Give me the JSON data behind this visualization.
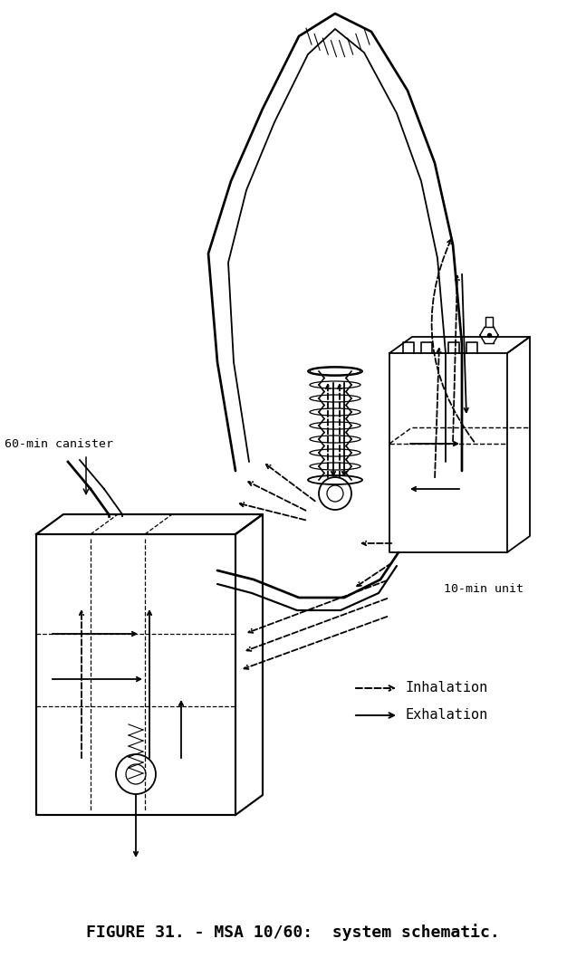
{
  "title": "FIGURE 31. - MSA 10/60:  system schematic.",
  "title_fontsize": 13,
  "background_color": "#ffffff",
  "line_color": "#000000",
  "legend_inhalation": "Inhalation",
  "legend_exhalation": "Exhalation",
  "label_60min": "60-min canister",
  "label_10min": "10-min unit",
  "figsize": [
    6.47,
    10.58
  ],
  "dpi": 100
}
